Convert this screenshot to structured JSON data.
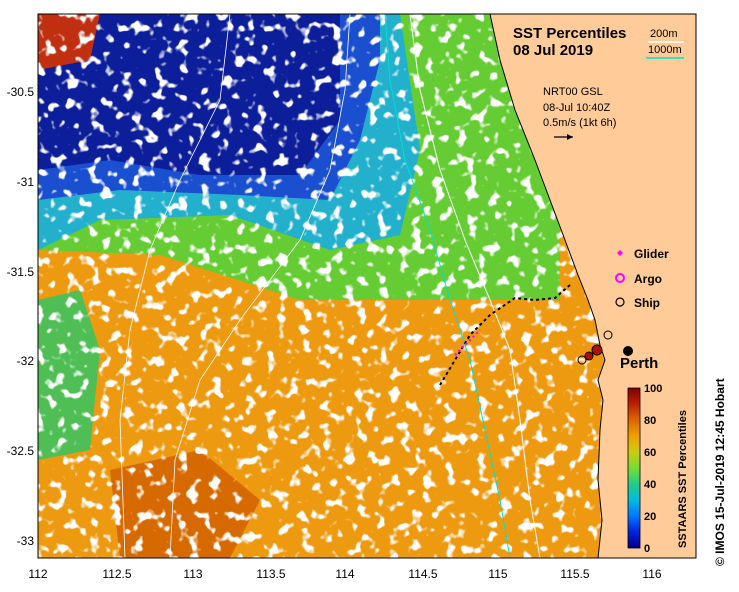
{
  "title": "SST Percentiles",
  "date": "08 Jul 2019",
  "contours": {
    "c200": "200m",
    "c1000": "1000m",
    "c200_color": "#ffffff",
    "c1000_color": "#00e0d0"
  },
  "current": {
    "source": "NRT00 GSL",
    "time": "08-Jul 10:40Z",
    "scale": "0.5m/s (1kt 6h)"
  },
  "legend": [
    {
      "label": "Glider",
      "color": "#ff00ff"
    },
    {
      "label": "Argo",
      "color": "#ff00ff"
    },
    {
      "label": "Ship",
      "color": "#000000"
    }
  ],
  "place": "Perth",
  "colorbar": {
    "title": "SSTAARS SST Percentiles",
    "ticks": [
      "0",
      "20",
      "40",
      "60",
      "80",
      "100"
    ],
    "colors": [
      "#00007f",
      "#0022dd",
      "#0077ff",
      "#00bbdd",
      "#22cc88",
      "#77dd33",
      "#cccc11",
      "#eea000",
      "#dd6600",
      "#bb2200",
      "#7f0000"
    ]
  },
  "axes": {
    "x_ticks": [
      "112",
      "112.5",
      "113",
      "113.5",
      "114",
      "114.5",
      "115",
      "115.5",
      "116"
    ],
    "y_ticks": [
      "-30.5",
      "-31",
      "-31.5",
      "-32",
      "-32.5",
      "-33"
    ]
  },
  "credit": "© IMOS 15-Jul-2019 12:45 Hobart",
  "land_color": "#ffcc99"
}
